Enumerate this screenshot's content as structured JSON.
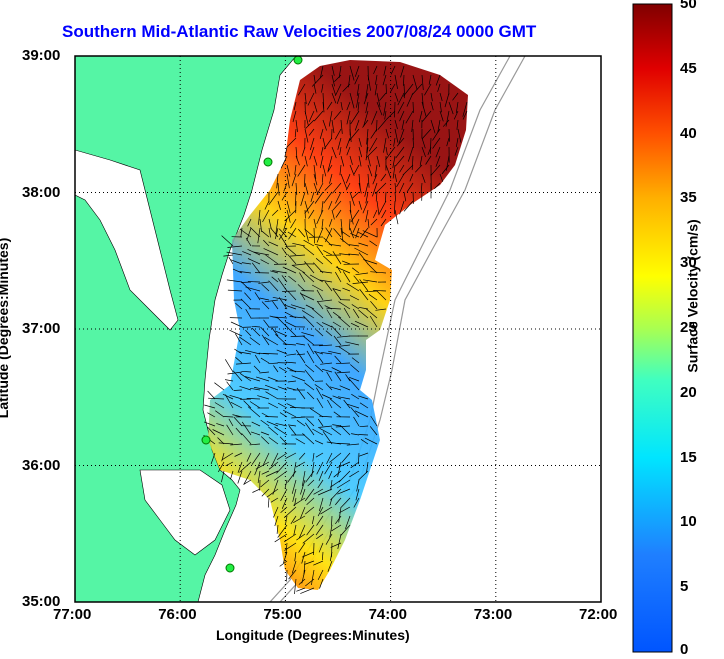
{
  "map": {
    "title": "Southern Mid-Atlantic Raw Velocities 2007/08/24 0000 GMT",
    "xlabel": "Longitude (Degrees:Minutes)",
    "ylabel": "Latitude (Degrees:Minutes)",
    "x_ticks": [
      "77:00",
      "76:00",
      "75:00",
      "74:00",
      "73:00",
      "72:00"
    ],
    "y_ticks": [
      "39:00",
      "38:00",
      "37:00",
      "36:00",
      "35:00"
    ],
    "lon_range": [
      -77,
      -72
    ],
    "lat_range": [
      35,
      39
    ],
    "land_color": "#55f5a5",
    "grid": true
  },
  "colorbar": {
    "label": "Surface Velocity (cm/s)",
    "ticks": [
      "50",
      "45",
      "40",
      "35",
      "30",
      "25",
      "20",
      "15",
      "10",
      "5",
      "0"
    ],
    "range": [
      0,
      50
    ],
    "colormap": "jet"
  },
  "stations": [
    {
      "name": "station-north"
    },
    {
      "name": "station-mid-north"
    },
    {
      "name": "station-mid-south"
    },
    {
      "name": "station-south"
    }
  ]
}
